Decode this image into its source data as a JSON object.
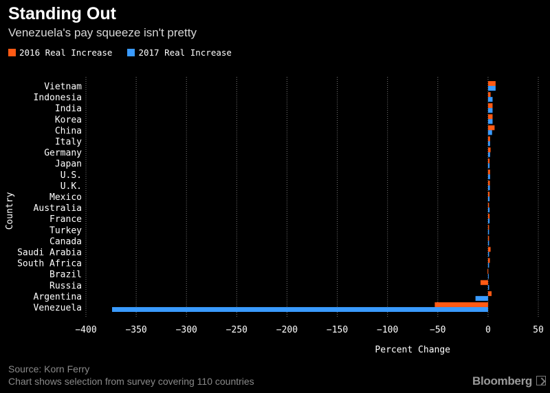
{
  "header": {
    "title": "Standing Out",
    "subtitle": "Venezuela's pay squeeze isn't pretty"
  },
  "colors": {
    "series_2016": "#ff5a14",
    "series_2017": "#3a9bff",
    "grid": "#7a7a7a",
    "axis_text": "#ffffff"
  },
  "chart_data": {
    "type": "bar",
    "orientation": "horizontal",
    "title": "Standing Out",
    "subtitle": "Venezuela's pay squeeze isn't pretty",
    "xlabel": "Percent Change",
    "ylabel": "Country",
    "xlim": [
      -400,
      50
    ],
    "xticks": [
      -400,
      -350,
      -300,
      -250,
      -200,
      -150,
      -100,
      -50,
      0,
      50
    ],
    "grid": true,
    "legend_position": "top-left",
    "categories": [
      "Vietnam",
      "Indonesia",
      "India",
      "Korea",
      "China",
      "Italy",
      "Germany",
      "Japan",
      "U.S.",
      "U.K.",
      "Mexico",
      "Australia",
      "France",
      "Turkey",
      "Canada",
      "Saudi Arabia",
      "South Africa",
      "Brazil",
      "Russia",
      "Argentina",
      "Venezuela"
    ],
    "series": [
      {
        "name": "2016 Real Increase",
        "values": [
          7.5,
          2.5,
          4.5,
          4.5,
          6.5,
          2.0,
          2.5,
          1.5,
          2.0,
          1.8,
          1.5,
          1.0,
          1.5,
          1.0,
          1.0,
          2.5,
          1.8,
          -0.5,
          -7.5,
          3.5,
          -53
        ]
      },
      {
        "name": "2017 Real Increase",
        "values": [
          7.5,
          4.5,
          4.5,
          4.5,
          4.0,
          2.0,
          2.0,
          1.5,
          2.0,
          1.8,
          1.5,
          1.5,
          1.5,
          1.0,
          1.0,
          1.0,
          1.0,
          0.5,
          1.0,
          -12.5,
          -374
        ]
      }
    ]
  },
  "footer": {
    "source": "Source: Korn Ferry",
    "note": "Chart shows selection from survey covering 110 countries",
    "brand": "Bloomberg"
  }
}
